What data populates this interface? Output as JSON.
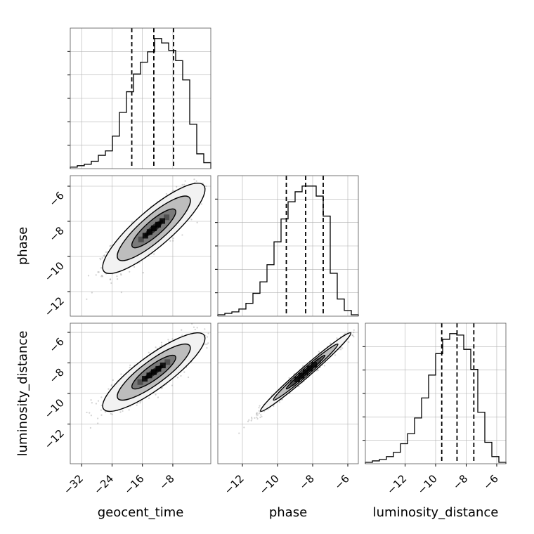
{
  "chart_data": {
    "type": "corner",
    "parameters": [
      "geocent_time",
      "phase",
      "luminosity_distance"
    ],
    "ranges": {
      "geocent_time": [
        -35,
        2
      ],
      "phase": [
        -13.4,
        -5.4
      ],
      "luminosity_distance": [
        -14.6,
        -5.4
      ]
    },
    "ticks": {
      "geocent_time": [
        -32,
        -24,
        -16,
        -8
      ],
      "phase": [
        -12,
        -10,
        -8,
        -6
      ],
      "luminosity_distance": [
        -12,
        -10,
        -8,
        -6
      ]
    },
    "tick_labels": {
      "geocent_time": [
        "−32",
        "−24",
        "−16",
        "−8"
      ],
      "phase": [
        "−12",
        "−10",
        "−8",
        "−6"
      ],
      "luminosity_distance": [
        "−12",
        "−10",
        "−8",
        "−6"
      ]
    },
    "quantiles": {
      "geocent_time": [
        -18.8,
        -13,
        -7.8
      ],
      "phase": [
        -9.5,
        -8.4,
        -7.4
      ],
      "luminosity_distance": [
        -9.6,
        -8.6,
        -7.5
      ]
    },
    "histograms": {
      "geocent_time": [
        1,
        2,
        3,
        5,
        9,
        12,
        22,
        38,
        52,
        64,
        72,
        79,
        88,
        85,
        80,
        73,
        60,
        30,
        10,
        4
      ],
      "phase": [
        1,
        2,
        3,
        5,
        9,
        16,
        24,
        36,
        52,
        68,
        80,
        87,
        91,
        91,
        84,
        70,
        30,
        12,
        4,
        1
      ],
      "luminosity_distance": [
        1,
        2,
        3,
        5,
        8,
        14,
        21,
        32,
        46,
        62,
        77,
        87,
        91,
        90,
        80,
        66,
        36,
        15,
        5,
        1
      ]
    },
    "grid": true,
    "grid_color": "#b0b0b0",
    "contour_color": "#000000",
    "density_color": "#000000",
    "scatter_color": "#7f7f7f"
  }
}
